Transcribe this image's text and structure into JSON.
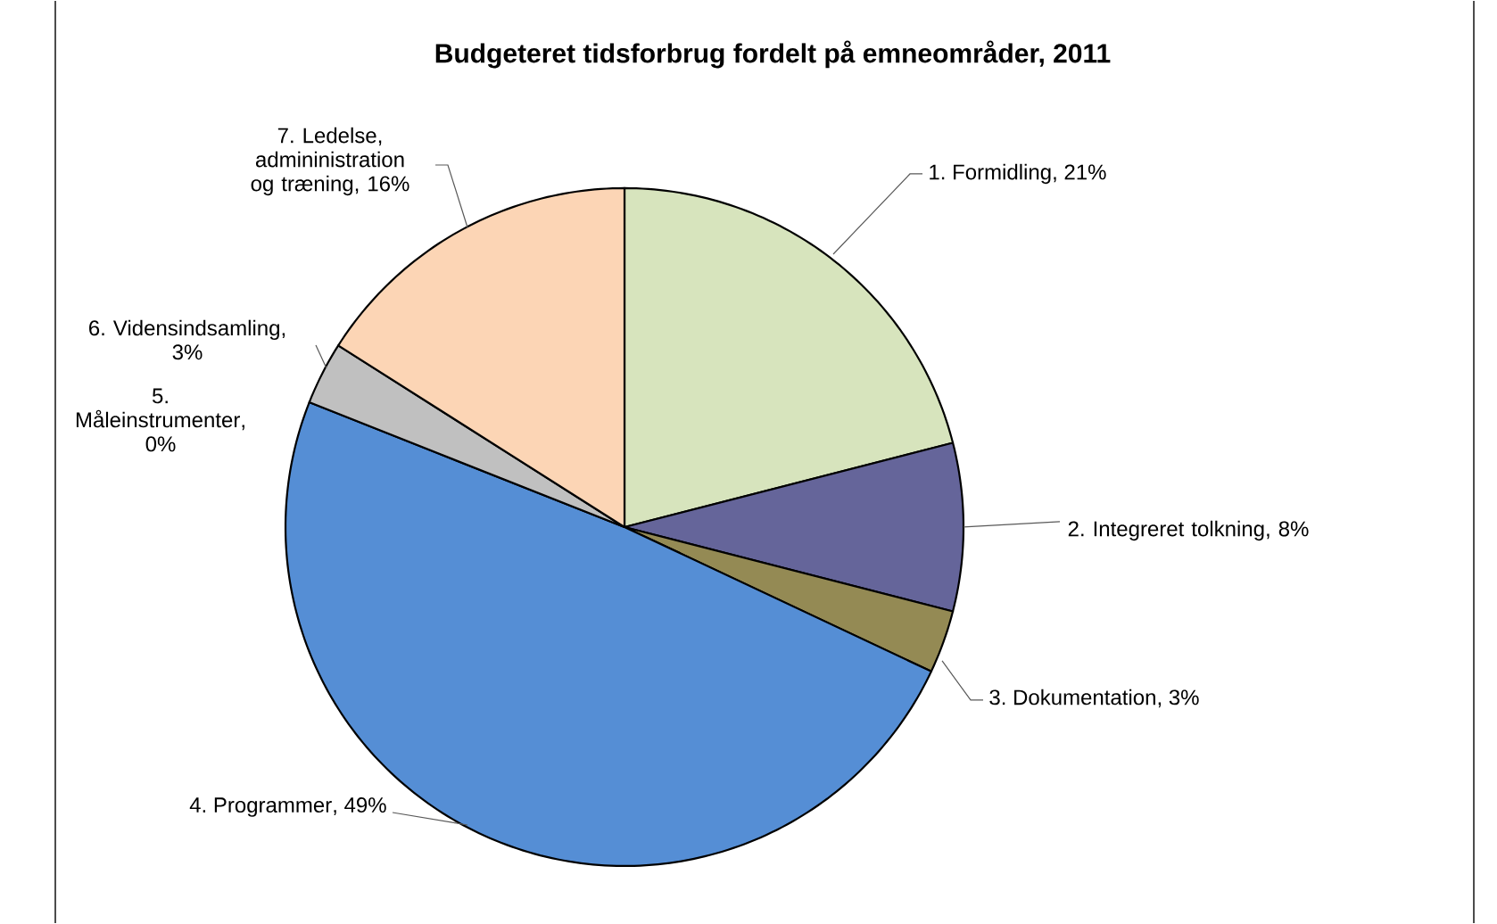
{
  "chart_data": {
    "type": "pie",
    "title": "Budgeteret tidsforbrug fordelt på emneområder, 2011",
    "categories": [
      "1. Formidling",
      "2. Integreret tolkning",
      "3. Dokumentation",
      "4. Programmer",
      "5. Måleinstrumenter",
      "6. Vidensindsamling",
      "7. Ledelse, admininistration og træning"
    ],
    "values": [
      21,
      8,
      3,
      49,
      0,
      3,
      16
    ],
    "value_labels": [
      ", 21%",
      ", 8%",
      ", 3%",
      ", 49%",
      ", 0%",
      ", 3%",
      ", 16%"
    ],
    "colors": [
      "#d7e4bd",
      "#65659a",
      "#948a54",
      "#558ed5",
      "#4f81bd",
      "#c0c0c0",
      "#fcd5b5"
    ]
  }
}
